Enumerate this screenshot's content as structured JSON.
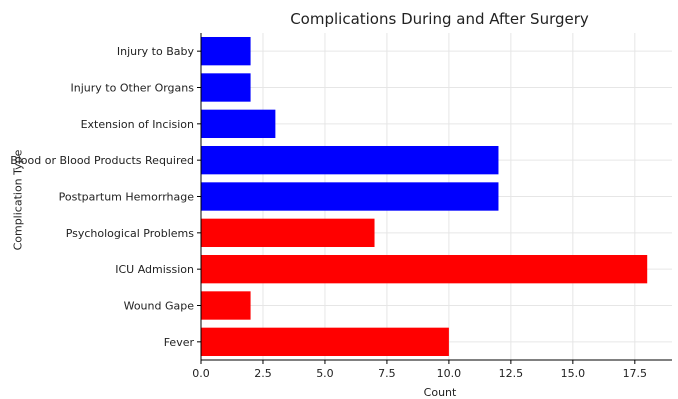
{
  "chart_data": {
    "type": "bar",
    "orientation": "horizontal",
    "title": "Complications During and After Surgery",
    "xlabel": "Count",
    "ylabel": "Complication Type",
    "categories": [
      "Fever",
      "Wound Gape",
      "ICU Admission",
      "Psychological Problems",
      "Postpartum Hemorrhage",
      "Blood or Blood Products Required",
      "Extension of Incision",
      "Injury to Other Organs",
      "Injury to Baby"
    ],
    "values": [
      10,
      2,
      18,
      7,
      12,
      12,
      3,
      2,
      2
    ],
    "bar_colors": [
      "#ff0000",
      "#ff0000",
      "#ff0000",
      "#ff0000",
      "#0000ff",
      "#0000ff",
      "#0000ff",
      "#0000ff",
      "#0000ff"
    ],
    "xlim": [
      0,
      19
    ],
    "xticks": [
      "0.0",
      "2.5",
      "5.0",
      "7.5",
      "10.0",
      "12.5",
      "15.0",
      "17.5"
    ],
    "grid": true
  }
}
